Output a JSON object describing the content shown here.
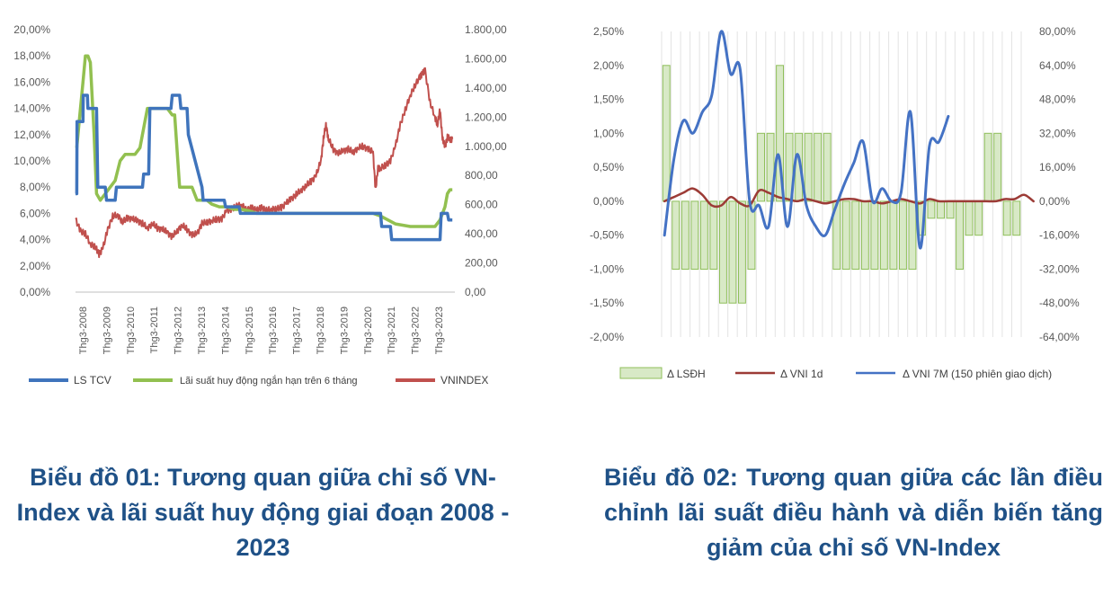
{
  "chart_data": [
    {
      "type": "line",
      "x_ticks": [
        "Thg3-2008",
        "Thg3-2009",
        "Thg3-2010",
        "Thg3-2011",
        "Thg3-2012",
        "Thg3-2013",
        "Thg3-2014",
        "Thg3-2015",
        "Thg3-2016",
        "Thg3-2017",
        "Thg3-2018",
        "Thg3-2019",
        "Thg3-2020",
        "Thg3-2021",
        "Thg3-2022",
        "Thg3-2023"
      ],
      "y_left_ticks": [
        "0,00%",
        "2,00%",
        "4,00%",
        "6,00%",
        "8,00%",
        "10,00%",
        "12,00%",
        "14,00%",
        "16,00%",
        "18,00%",
        "20,00%"
      ],
      "y_right_ticks": [
        "0,00",
        "200,00",
        "400,00",
        "600,00",
        "800,00",
        "1.000,00",
        "1.200,00",
        "1.400,00",
        "1.600,00",
        "1.800,00"
      ],
      "ylim_left": [
        0,
        20
      ],
      "ylim_right": [
        0,
        1800
      ],
      "xlim": [
        2008,
        2023.3
      ],
      "grid": false,
      "legend_position": "bottom",
      "series": [
        {
          "name": "LS TCV",
          "axis": "left",
          "color": "#3f74bc",
          "x": [
            2008.0,
            2008.05,
            2008.06,
            2008.3,
            2008.31,
            2008.48,
            2008.5,
            2008.85,
            2008.9,
            2009.2,
            2009.25,
            2009.6,
            2009.65,
            2010.7,
            2010.75,
            2010.95,
            2011.0,
            2011.35,
            2011.4,
            2011.85,
            2011.9,
            2012.2,
            2012.25,
            2012.5,
            2012.55,
            2013.1,
            2013.15,
            2013.3,
            2013.35,
            2014.0,
            2014.05,
            2014.6,
            2014.65,
            2019.9,
            2020.0,
            2020.3,
            2020.35,
            2020.7,
            2020.75,
            2022.6,
            2022.7,
            2022.75,
            2023.0,
            2023.05,
            2023.2
          ],
          "y": [
            7.5,
            7.5,
            13.0,
            13.0,
            15.0,
            15.0,
            14.0,
            14.0,
            8.0,
            8.0,
            7.0,
            7.0,
            8.0,
            8.0,
            9.0,
            9.0,
            14.0,
            14.0,
            14.0,
            14.0,
            15.0,
            15.0,
            14.0,
            14.0,
            12.0,
            8.0,
            7.0,
            7.0,
            7.0,
            7.0,
            6.5,
            6.5,
            6.0,
            6.0,
            6.0,
            6.0,
            5.0,
            5.0,
            4.0,
            4.0,
            4.0,
            6.0,
            6.0,
            5.5,
            5.5
          ]
        },
        {
          "name": "Lãi suất huy động ngắn hạn trên 6 tháng",
          "axis": "left",
          "color": "#92c050",
          "x": [
            2008.0,
            2008.05,
            2008.15,
            2008.3,
            2008.4,
            2008.5,
            2008.6,
            2008.75,
            2008.85,
            2009.0,
            2009.2,
            2009.4,
            2009.6,
            2009.8,
            2010.0,
            2010.2,
            2010.4,
            2010.6,
            2010.8,
            2010.9,
            2011.1,
            2011.4,
            2011.7,
            2011.9,
            2012.0,
            2012.2,
            2012.3,
            2012.5,
            2012.7,
            2012.9,
            2013.1,
            2013.3,
            2013.5,
            2013.8,
            2014.1,
            2014.4,
            2014.7,
            2015.0,
            2015.3,
            2016.0,
            2017.0,
            2018.0,
            2019.0,
            2019.5,
            2020.0,
            2020.3,
            2020.6,
            2020.9,
            2021.5,
            2022.0,
            2022.5,
            2022.7,
            2022.9,
            2023.0,
            2023.1,
            2023.2
          ],
          "y": [
            11,
            11,
            13,
            16,
            18,
            18,
            17.5,
            12,
            7.5,
            7.0,
            7.5,
            8.0,
            8.5,
            10.0,
            10.5,
            10.5,
            10.5,
            11.0,
            13.0,
            14.0,
            14.0,
            14.0,
            14.0,
            13.5,
            13.5,
            8.0,
            8.0,
            8.0,
            8.0,
            7.0,
            7.0,
            7.0,
            6.7,
            6.5,
            6.5,
            6.3,
            6.3,
            6.2,
            6.0,
            6.0,
            6.0,
            6.0,
            6.0,
            6.0,
            6.0,
            5.8,
            5.5,
            5.2,
            5.0,
            5.0,
            5.0,
            5.5,
            6.5,
            7.5,
            7.8,
            7.8
          ]
        },
        {
          "name": "VNINDEX",
          "axis": "right",
          "color": "#c0504d",
          "x": [
            2008.0,
            2008.2,
            2008.4,
            2008.6,
            2008.8,
            2008.95,
            2009.1,
            2009.3,
            2009.5,
            2009.7,
            2009.9,
            2010.1,
            2010.3,
            2010.5,
            2010.7,
            2010.9,
            2011.1,
            2011.3,
            2011.5,
            2011.7,
            2011.9,
            2012.1,
            2012.3,
            2012.5,
            2012.7,
            2012.9,
            2013.1,
            2013.3,
            2013.5,
            2013.7,
            2013.9,
            2014.1,
            2014.3,
            2014.5,
            2014.7,
            2014.9,
            2015.1,
            2015.3,
            2015.5,
            2015.7,
            2015.9,
            2016.1,
            2016.3,
            2016.5,
            2016.7,
            2016.9,
            2017.1,
            2017.3,
            2017.5,
            2017.7,
            2017.9,
            2018.0,
            2018.1,
            2018.2,
            2018.4,
            2018.6,
            2018.8,
            2019.0,
            2019.2,
            2019.4,
            2019.6,
            2019.8,
            2020.0,
            2020.1,
            2020.2,
            2020.3,
            2020.5,
            2020.7,
            2020.9,
            2021.1,
            2021.3,
            2021.5,
            2021.7,
            2021.9,
            2022.0,
            2022.1,
            2022.3,
            2022.5,
            2022.6,
            2022.7,
            2022.8,
            2022.9,
            2023.0,
            2023.1,
            2023.2
          ],
          "y": [
            500,
            420,
            400,
            330,
            310,
            260,
            300,
            430,
            520,
            530,
            480,
            510,
            500,
            490,
            470,
            440,
            470,
            440,
            430,
            410,
            380,
            420,
            460,
            430,
            390,
            400,
            470,
            480,
            490,
            500,
            500,
            560,
            570,
            590,
            600,
            560,
            580,
            560,
            580,
            560,
            570,
            570,
            580,
            610,
            640,
            670,
            700,
            730,
            760,
            800,
            900,
            1050,
            1150,
            1050,
            980,
            950,
            970,
            980,
            960,
            990,
            1000,
            980,
            960,
            700,
            850,
            850,
            870,
            900,
            1000,
            1150,
            1250,
            1350,
            1420,
            1480,
            1500,
            1520,
            1300,
            1200,
            1150,
            1250,
            1050,
            1000,
            1060,
            1050,
            1050
          ]
        }
      ]
    },
    {
      "type": "bar",
      "bar_label": "Δ LSĐH",
      "bar_color": "#d8e9c6",
      "bar_border": "#8fbf5a",
      "y_left_ticks": [
        "-2,00%",
        "-1,50%",
        "-1,00%",
        "-0,50%",
        "0,00%",
        "0,50%",
        "1,00%",
        "1,50%",
        "2,00%",
        "2,50%"
      ],
      "y_right_ticks": [
        "-64,00%",
        "-48,00%",
        "-32,00%",
        "-16,00%",
        "0,00%",
        "16,00%",
        "32,00%",
        "48,00%",
        "64,00%",
        "80,00%"
      ],
      "ylim_left": [
        -2.0,
        2.5
      ],
      "ylim_right": [
        -64,
        80
      ],
      "grid": true,
      "legend_position": "bottom",
      "bar_values": [
        2.0,
        -1.0,
        -1.0,
        -1.0,
        -1.0,
        -1.0,
        -1.5,
        -1.5,
        -1.5,
        -1.0,
        1.0,
        1.0,
        2.0,
        1.0,
        1.0,
        1.0,
        1.0,
        1.0,
        -1.0,
        -1.0,
        -1.0,
        -1.0,
        -1.0,
        -1.0,
        -1.0,
        -1.0,
        -1.0,
        -0.5,
        -0.25,
        -0.25,
        -0.25,
        -1.0,
        -0.5,
        -0.5,
        1.0,
        1.0,
        -0.5,
        -0.5
      ],
      "series": [
        {
          "name": "Δ VNI 1d",
          "axis": "right",
          "color": "#9c3b36",
          "values": [
            0,
            2,
            4,
            6,
            3,
            -2,
            -2,
            2,
            -1,
            -2,
            5,
            4,
            2,
            1,
            0,
            1,
            0,
            -1,
            0,
            1,
            1,
            0,
            0,
            -1,
            0,
            1,
            0,
            -1,
            1,
            0,
            0,
            0,
            0,
            0,
            0,
            0,
            1,
            1,
            3,
            0
          ]
        },
        {
          "name": "Δ VNI 7M (150 phiên giao dịch)",
          "axis": "right",
          "color": "#4472c4",
          "values": [
            -16,
            20,
            38,
            32,
            42,
            50,
            80,
            60,
            62,
            0,
            -2,
            -12,
            22,
            -12,
            22,
            -2,
            -12,
            -16,
            -4,
            8,
            18,
            28,
            0,
            6,
            0,
            4,
            42,
            -22,
            26,
            28,
            40
          ]
        }
      ]
    }
  ],
  "captions": {
    "chart1": "Biểu đồ 01: Tương quan giữa chỉ số VN-Index và lãi suất huy động giai đoạn 2008 - 2023",
    "chart2": "Biểu đồ 02: Tương quan giữa các lần điều chỉnh lãi suất điều hành và diễn biến tăng giảm của chỉ số VN-Index"
  }
}
